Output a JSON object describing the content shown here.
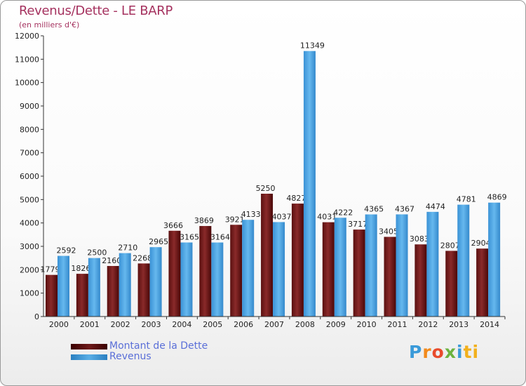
{
  "title": "Revenus/Dette - LE BARP",
  "subtitle": "(en milliers d'€)",
  "brand": {
    "letters": [
      "P",
      "r",
      "o",
      "x",
      "i",
      "ti"
    ]
  },
  "chart_data": {
    "type": "bar",
    "categories": [
      "2000",
      "2001",
      "2002",
      "2003",
      "2004",
      "2005",
      "2006",
      "2007",
      "2008",
      "2009",
      "2010",
      "2011",
      "2012",
      "2013",
      "2014"
    ],
    "ylim": [
      0,
      12000
    ],
    "yticks": [
      0,
      1000,
      2000,
      3000,
      4000,
      5000,
      6000,
      7000,
      8000,
      9000,
      10000,
      11000,
      12000
    ],
    "grid": false,
    "legend_position": "bottom-left",
    "series": [
      {
        "name": "Montant de la Dette",
        "color": "#7b1f1f",
        "values": [
          1779,
          1826,
          2160,
          2268,
          3666,
          3869,
          3921,
          5250,
          4827,
          4031,
          3717,
          3405,
          3083,
          2807,
          2904
        ],
        "labels": [
          "1779",
          "1826",
          "2160",
          "2268",
          "3666",
          "3869",
          "3921",
          "5250",
          "4827",
          "4031",
          "3717",
          "3405",
          "3083",
          "2807",
          "2904"
        ]
      },
      {
        "name": "Revenus",
        "color": "#4aa6e6",
        "values": [
          2592,
          2500,
          2710,
          2965,
          3165,
          3164,
          4133,
          4037,
          11349,
          4222,
          4365,
          4367,
          4474,
          4781,
          4869
        ],
        "labels": [
          "2592",
          "2500",
          "2710",
          "2965",
          "3165",
          "3164",
          "4133",
          "4037",
          "11349",
          "4222",
          "4365",
          "4367",
          "4474",
          "4781",
          "4869"
        ]
      }
    ]
  }
}
